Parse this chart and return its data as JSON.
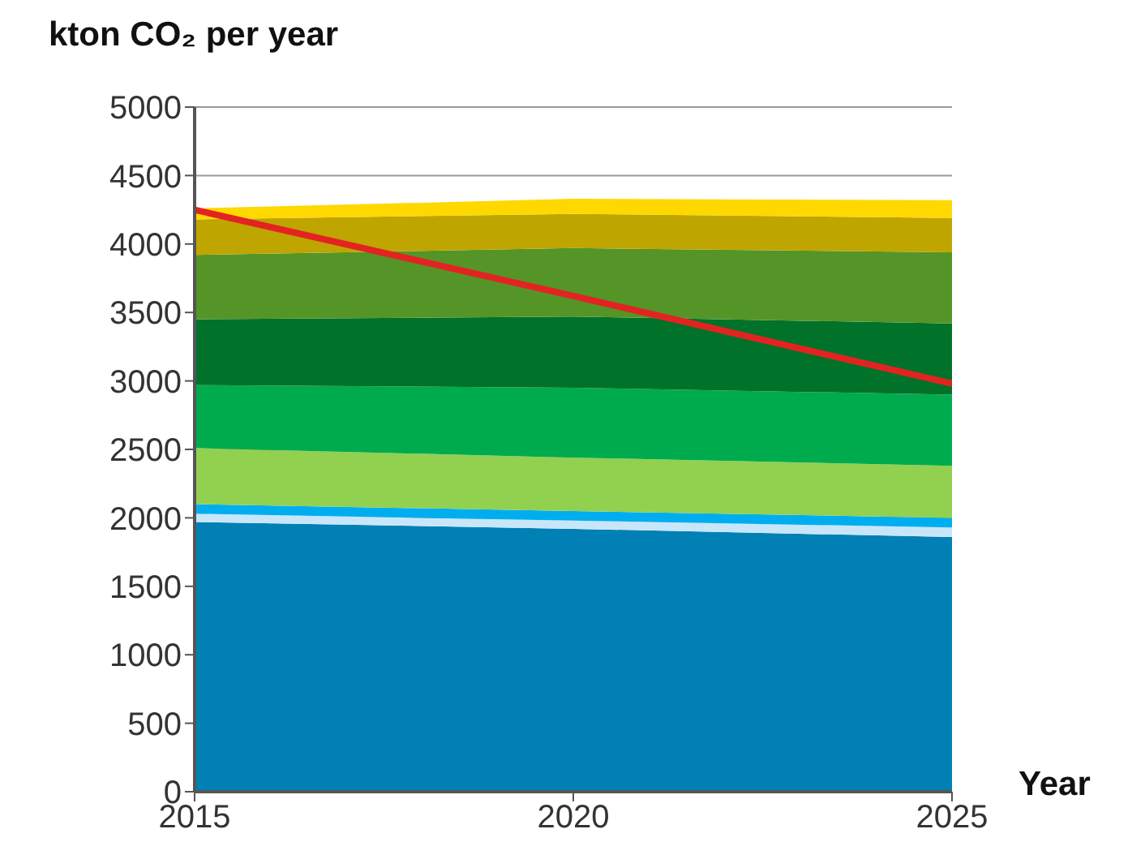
{
  "chart_data": {
    "type": "area",
    "ylabel": "kton CO₂ per year",
    "xlabel": "Year",
    "x": [
      2015,
      2020,
      2025
    ],
    "stacked": true,
    "xlim": [
      2015,
      2025
    ],
    "xticks": [
      2015,
      2020,
      2025
    ],
    "ylim": [
      0,
      5000
    ],
    "yticks": [
      0,
      500,
      1000,
      1500,
      2000,
      2500,
      3000,
      3500,
      4000,
      4500,
      5000
    ],
    "grid": "y",
    "series": [
      {
        "color": "#0080b4",
        "values": [
          1970,
          1920,
          1860
        ]
      },
      {
        "color": "#c8e6fa",
        "values": [
          60,
          60,
          70
        ]
      },
      {
        "color": "#00aeef",
        "values": [
          70,
          70,
          70
        ]
      },
      {
        "color": "#92d050",
        "values": [
          410,
          390,
          380
        ]
      },
      {
        "color": "#00ab4e",
        "values": [
          460,
          510,
          520
        ]
      },
      {
        "color": "#007229",
        "values": [
          480,
          520,
          520
        ]
      },
      {
        "color": "#559527",
        "values": [
          470,
          500,
          520
        ]
      },
      {
        "color": "#bfa500",
        "values": [
          260,
          250,
          250
        ]
      },
      {
        "color": "#ffd800",
        "values": [
          80,
          110,
          130
        ]
      },
      {
        "type": "line",
        "color": "#e32322",
        "values": [
          4250,
          3620,
          2980
        ]
      }
    ]
  }
}
